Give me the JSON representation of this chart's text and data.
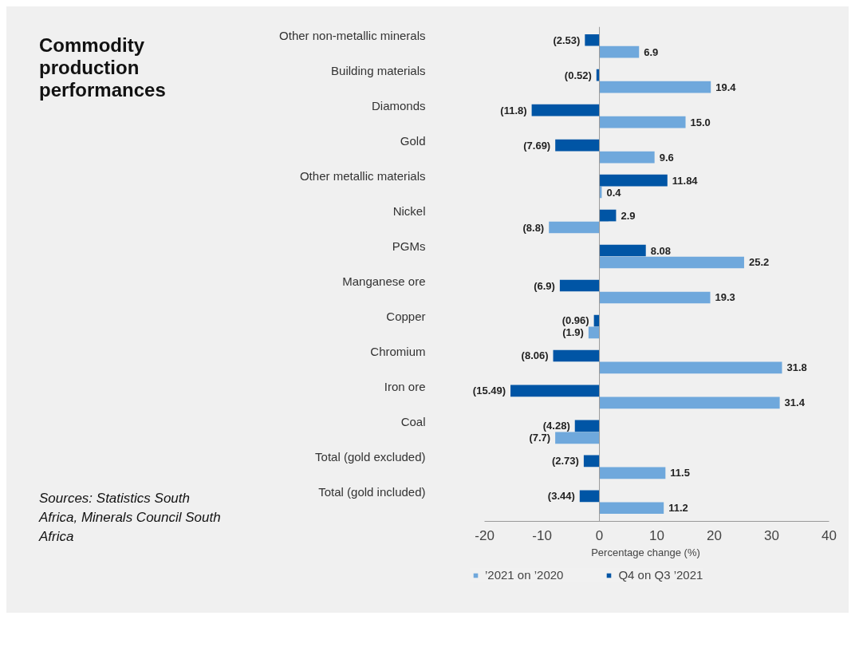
{
  "chart_data": {
    "type": "bar",
    "orientation": "horizontal",
    "title": "Commodity production performances",
    "annotations": [
      "Sources: Statistics South Africa, Minerals Council South Africa"
    ],
    "categories": [
      "Other non-metallic minerals",
      "Building materials",
      "Diamonds",
      "Gold",
      "Other metallic materials",
      "Nickel",
      "PGMs",
      "Manganese ore",
      "Copper",
      "Chromium",
      "Iron ore",
      "Coal",
      "Total (gold excluded)",
      "Total (gold included)"
    ],
    "series": [
      {
        "name": "’2021 on ’2020",
        "color": "#6fa8dc",
        "values": [
          6.9,
          19.4,
          15.0,
          9.6,
          0.4,
          -8.8,
          25.2,
          19.3,
          -1.9,
          31.8,
          31.4,
          -7.7,
          11.5,
          11.2
        ],
        "value_labels": [
          "6.9",
          "19.4",
          "15.0",
          "9.6",
          "0.4",
          "(8.8)",
          "25.2",
          "19.3",
          "(1.9)",
          "31.8",
          "31.4",
          "(7.7)",
          "11.5",
          "11.2"
        ]
      },
      {
        "name": "Q4 on Q3 ’2021",
        "color": "#0055a5",
        "values": [
          -2.53,
          -0.52,
          -11.8,
          -7.69,
          11.84,
          2.9,
          8.08,
          -6.9,
          -0.96,
          -8.06,
          -15.49,
          -4.28,
          -2.73,
          -3.44
        ],
        "value_labels": [
          "(2.53)",
          "(0.52)",
          "(11.8)",
          "(7.69)",
          "11.84",
          "2.9",
          "8.08",
          "(6.9)",
          "(0.96)",
          "(8.06)",
          "(15.49)",
          "(4.28)",
          "(2.73)",
          "(3.44)"
        ]
      }
    ],
    "xlim": [
      -20,
      40
    ],
    "xticks": [
      -20,
      -10,
      0,
      10,
      20,
      30,
      40
    ],
    "xlabel": "Percentage change (%)",
    "legend": "bottom"
  }
}
